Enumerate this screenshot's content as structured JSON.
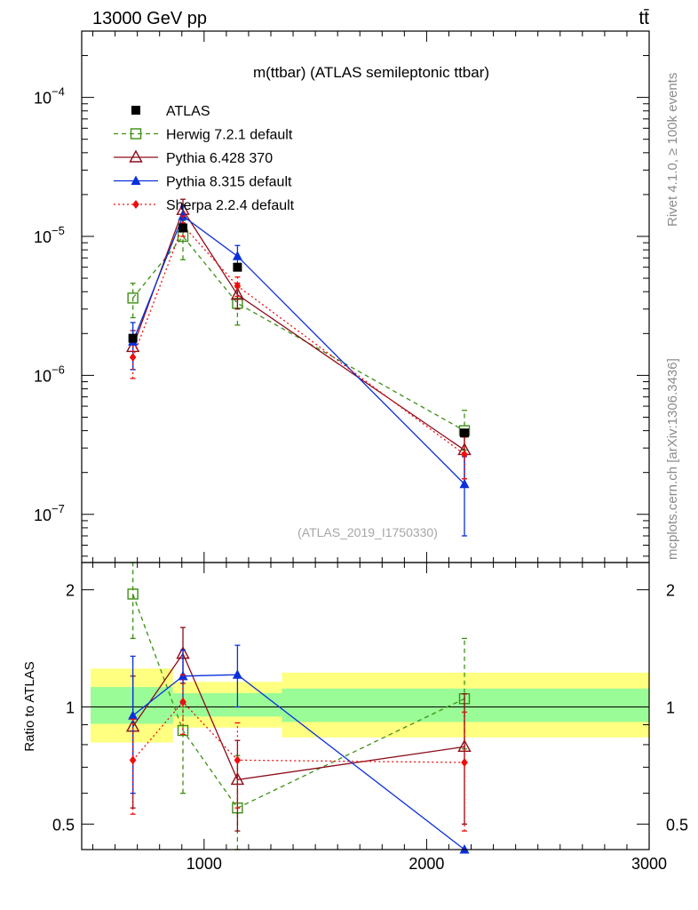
{
  "header": {
    "energy_label": "13000 GeV pp",
    "process_label": "tt̄"
  },
  "side_labels": {
    "rivet": "Rivet 4.1.0, ≥ 100k events",
    "mcplots": "mcplots.cern.ch [arXiv:1306.3436]"
  },
  "chart_data": {
    "type": "line",
    "title": "m(ttbar) (ATLAS semileptonic ttbar)",
    "analysis_ref": "(ATLAS_2019_I1750330)",
    "xlim": [
      450,
      3000
    ],
    "ylim_main": [
      4.5e-08,
      0.0003
    ],
    "ylim_ratio": [
      0.43,
      2.35
    ],
    "ylabel_ratio": "Ratio to ATLAS",
    "main_y_ticks": [
      {
        "value": 1e-07,
        "base": "10",
        "exp": "−7"
      },
      {
        "value": 1e-06,
        "base": "10",
        "exp": "−6"
      },
      {
        "value": 1e-05,
        "base": "10",
        "exp": "−5"
      },
      {
        "value": 0.0001,
        "base": "10",
        "exp": "−4"
      }
    ],
    "ratio_y_ticks": [
      {
        "value": 0.5,
        "label": "0.5"
      },
      {
        "value": 1,
        "label": "1"
      },
      {
        "value": 2,
        "label": "2"
      }
    ],
    "x_ticks": [
      {
        "value": 1000,
        "label": "1000"
      },
      {
        "value": 2000,
        "label": "2000"
      },
      {
        "value": 3000,
        "label": "3000"
      }
    ],
    "bins": [
      {
        "low": 490,
        "high": 860
      },
      {
        "low": 860,
        "high": 1140
      },
      {
        "low": 1140,
        "high": 1350
      },
      {
        "low": 1350,
        "high": 3000
      }
    ],
    "band": [
      {
        "stat_lo": 0.905,
        "stat_hi": 1.125,
        "tot_lo": 0.81,
        "tot_hi": 1.255
      },
      {
        "stat_lo": 0.945,
        "stat_hi": 1.085,
        "tot_lo": 0.885,
        "tot_hi": 1.16
      },
      {
        "stat_lo": 0.945,
        "stat_hi": 1.085,
        "tot_lo": 0.885,
        "tot_hi": 1.16
      },
      {
        "stat_lo": 0.915,
        "stat_hi": 1.115,
        "tot_lo": 0.835,
        "tot_hi": 1.225
      }
    ],
    "data": {
      "name": "ATLAS",
      "color": "#000000",
      "x": [
        680,
        905,
        1150,
        2170
      ],
      "y": [
        1.85e-06,
        1.15e-05,
        6e-06,
        3.85e-07
      ]
    },
    "series": [
      {
        "name": "Herwig 7.2.1 default",
        "color": "#3d8f15",
        "dash": "5,4",
        "marker": "open-square",
        "x": [
          680,
          905,
          1150,
          2170
        ],
        "y": [
          3.6e-06,
          1e-05,
          3.3e-06,
          4e-07
        ],
        "ylo": [
          2.6e-06,
          6.8e-06,
          2.3e-06,
          2.9e-07
        ],
        "yhi": [
          4.6e-06,
          1.3e-05,
          4.3e-06,
          5.6e-07
        ],
        "ratio": [
          1.95,
          0.87,
          0.55,
          1.05
        ],
        "rlo": [
          1.5,
          0.6,
          0.35,
          0.78
        ],
        "rhi": [
          2.4,
          1.0,
          0.75,
          1.5
        ]
      },
      {
        "name": "Pythia 6.428 370",
        "color": "#8b0d1b",
        "dash": "",
        "marker": "open-triangle",
        "x": [
          680,
          905,
          1150,
          2170
        ],
        "y": [
          1.6e-06,
          1.55e-05,
          3.8e-06,
          2.9e-07
        ],
        "ylo": [
          1.1e-06,
          1.25e-05,
          3e-06,
          1.8e-07
        ],
        "yhi": [
          2.1e-06,
          1.85e-05,
          4.6e-06,
          4e-07
        ],
        "ratio": [
          0.89,
          1.37,
          0.65,
          0.79
        ],
        "rlo": [
          0.55,
          1.15,
          0.48,
          0.5
        ],
        "rhi": [
          1.2,
          1.6,
          0.82,
          1.08
        ]
      },
      {
        "name": "Pythia 8.315 default",
        "color": "#0a2fdb",
        "dash": "",
        "marker": "filled-triangle",
        "x": [
          680,
          905,
          1150,
          2170
        ],
        "y": [
          1.75e-06,
          1.4e-05,
          7.2e-06,
          1.65e-07
        ],
        "ylo": [
          1.1e-06,
          1.15e-05,
          5.9e-06,
          7e-08
        ],
        "yhi": [
          2.4e-06,
          1.65e-05,
          8.6e-06,
          2.6e-07
        ],
        "ratio": [
          0.95,
          1.2,
          1.21,
          0.4
        ],
        "rlo": [
          0.6,
          1.02,
          1.0,
          0.4
        ],
        "rhi": [
          1.35,
          1.4,
          1.44,
          0.4
        ]
      },
      {
        "name": "Sherpa 2.2.4 default",
        "color": "#ef0d0d",
        "dash": "2,3",
        "marker": "filled-diamond",
        "x": [
          680,
          905,
          1150,
          2170
        ],
        "y": [
          1.35e-06,
          1.2e-05,
          4.4e-06,
          2.7e-07
        ],
        "ylo": [
          9.5e-07,
          1e-05,
          3.7e-06,
          1.8e-07
        ],
        "yhi": [
          1.75e-06,
          1.4e-05,
          5.1e-06,
          3.6e-07
        ],
        "ratio": [
          0.73,
          1.03,
          0.73,
          0.72
        ],
        "rlo": [
          0.53,
          0.85,
          0.55,
          0.48
        ],
        "rhi": [
          0.93,
          1.21,
          0.91,
          0.97
        ]
      }
    ]
  }
}
